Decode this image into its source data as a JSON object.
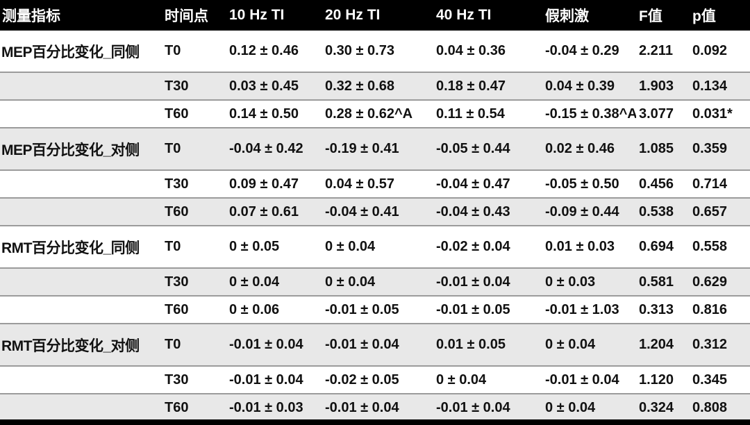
{
  "colors": {
    "header_bg": "#000000",
    "header_text": "#ffffff",
    "stripe_gray": "#e8e8e8",
    "row_line": "#9b9b9b",
    "body_text": "#111111"
  },
  "table": {
    "columns": [
      "测量指标",
      "时间点",
      "10 Hz TI",
      "20 Hz TI",
      "40 Hz TI",
      "假刺激",
      "F值",
      "p值"
    ],
    "sections": [
      {
        "measure": "MEP百分比变化_同侧",
        "rows": [
          {
            "time": "T0",
            "v10": "0.12 ± 0.46",
            "v20": "0.30 ± 0.73",
            "v40": "0.04 ± 0.36",
            "sham": "-0.04 ± 0.29",
            "f": "2.211",
            "p": "0.092"
          },
          {
            "time": "T30",
            "v10": "0.03 ± 0.45",
            "v20": "0.32 ± 0.68",
            "v40": "0.18 ± 0.47",
            "sham": "0.04 ± 0.39",
            "f": "1.903",
            "p": "0.134"
          },
          {
            "time": "T60",
            "v10": "0.14 ± 0.50",
            "v20": "0.28 ± 0.62^A",
            "v40": "0.11 ± 0.54",
            "sham": "-0.15 ± 0.38^A",
            "f": "3.077",
            "p": "0.031*"
          }
        ]
      },
      {
        "measure": "MEP百分比变化_对侧",
        "rows": [
          {
            "time": "T0",
            "v10": "-0.04 ± 0.42",
            "v20": "-0.19 ± 0.41",
            "v40": "-0.05 ± 0.44",
            "sham": "0.02 ± 0.46",
            "f": "1.085",
            "p": "0.359"
          },
          {
            "time": "T30",
            "v10": "0.09 ± 0.47",
            "v20": "0.04 ± 0.57",
            "v40": "-0.04 ± 0.47",
            "sham": "-0.05 ± 0.50",
            "f": "0.456",
            "p": "0.714"
          },
          {
            "time": "T60",
            "v10": "0.07 ± 0.61",
            "v20": "-0.04 ± 0.41",
            "v40": "-0.04 ± 0.43",
            "sham": "-0.09 ± 0.44",
            "f": "0.538",
            "p": "0.657"
          }
        ]
      },
      {
        "measure": "RMT百分比变化_同侧",
        "rows": [
          {
            "time": "T0",
            "v10": "0 ± 0.05",
            "v20": "0 ± 0.04",
            "v40": "-0.02 ± 0.04",
            "sham": "0.01 ± 0.03",
            "f": "0.694",
            "p": "0.558"
          },
          {
            "time": "T30",
            "v10": "0 ± 0.04",
            "v20": "0 ± 0.04",
            "v40": "-0.01 ± 0.04",
            "sham": "0 ± 0.03",
            "f": "0.581",
            "p": "0.629"
          },
          {
            "time": "T60",
            "v10": "0 ± 0.06",
            "v20": "-0.01 ± 0.05",
            "v40": "-0.01 ± 0.05",
            "sham": "-0.01 ± 1.03",
            "f": "0.313",
            "p": "0.816"
          }
        ]
      },
      {
        "measure": "RMT百分比变化_对侧",
        "rows": [
          {
            "time": "T0",
            "v10": "-0.01 ± 0.04",
            "v20": "-0.01 ± 0.04",
            "v40": "0.01 ± 0.05",
            "sham": "0 ± 0.04",
            "f": "1.204",
            "p": "0.312"
          },
          {
            "time": "T30",
            "v10": "-0.01 ± 0.04",
            "v20": "-0.02 ± 0.05",
            "v40": "0 ± 0.04",
            "sham": "-0.01 ± 0.04",
            "f": "1.120",
            "p": "0.345"
          },
          {
            "time": "T60",
            "v10": "-0.01 ± 0.03",
            "v20": "-0.01 ± 0.04",
            "v40": "-0.01 ± 0.04",
            "sham": "0 ± 0.04",
            "f": "0.324",
            "p": "0.808"
          }
        ]
      }
    ]
  }
}
